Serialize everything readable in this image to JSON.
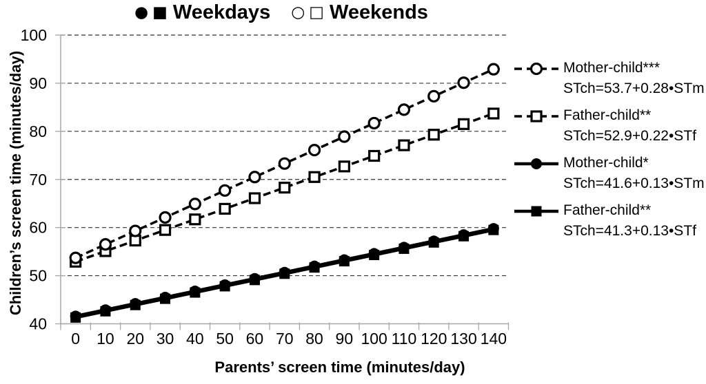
{
  "chart_data": {
    "type": "line",
    "top_legend": [
      {
        "markers": [
          "●",
          "■"
        ],
        "label": "Weekdays"
      },
      {
        "markers": [
          "○",
          "□"
        ],
        "label": "Weekends"
      }
    ],
    "xlabel": "Parents’ screen time (minutes/day)",
    "ylabel": "Children’s screen time (minutes/day)",
    "x": [
      0,
      10,
      20,
      30,
      40,
      50,
      60,
      70,
      80,
      90,
      100,
      110,
      120,
      130,
      140
    ],
    "xticks": [
      0,
      10,
      20,
      30,
      40,
      50,
      60,
      70,
      80,
      90,
      100,
      110,
      120,
      130,
      140
    ],
    "yticks": [
      40,
      50,
      60,
      70,
      80,
      90,
      100
    ],
    "xlim": [
      0,
      140
    ],
    "ylim": [
      40,
      100
    ],
    "grid": "horizontal-dashed",
    "legend_position": "right",
    "colors": {
      "series": "#000000",
      "axis": "#a6a6a6",
      "gridline": "#333333",
      "background": "#ffffff",
      "marker_fill_open": "#ffffff"
    },
    "series": [
      {
        "name": "Mother-child***",
        "equation": "STch=53.7+0.28•STm",
        "group": "Weekends",
        "line_style": "dashed",
        "marker": "open-circle",
        "values": [
          53.7,
          56.5,
          59.3,
          62.1,
          64.9,
          67.7,
          70.5,
          73.3,
          76.1,
          78.9,
          81.7,
          84.5,
          87.3,
          90.1,
          92.9
        ]
      },
      {
        "name": "Father-child**",
        "equation": "STch=52.9+0.22•STf",
        "group": "Weekends",
        "line_style": "dashed",
        "marker": "open-square",
        "values": [
          52.9,
          55.1,
          57.3,
          59.5,
          61.7,
          63.9,
          66.1,
          68.3,
          70.5,
          72.7,
          74.9,
          77.1,
          79.3,
          81.5,
          83.7
        ]
      },
      {
        "name": "Mother-child*",
        "equation": "STch=41.6+0.13•STm",
        "group": "Weekdays",
        "line_style": "solid",
        "marker": "filled-circle",
        "values": [
          41.6,
          42.9,
          44.2,
          45.5,
          46.8,
          48.1,
          49.4,
          50.7,
          52.0,
          53.3,
          54.6,
          55.9,
          57.2,
          58.5,
          59.8
        ]
      },
      {
        "name": "Father-child**",
        "equation": "STch=41.3+0.13•STf",
        "group": "Weekdays",
        "line_style": "solid",
        "marker": "filled-square",
        "values": [
          41.3,
          42.6,
          43.9,
          45.2,
          46.5,
          47.8,
          49.1,
          50.4,
          51.7,
          53.0,
          54.3,
          55.6,
          56.9,
          58.2,
          59.5
        ]
      }
    ]
  }
}
